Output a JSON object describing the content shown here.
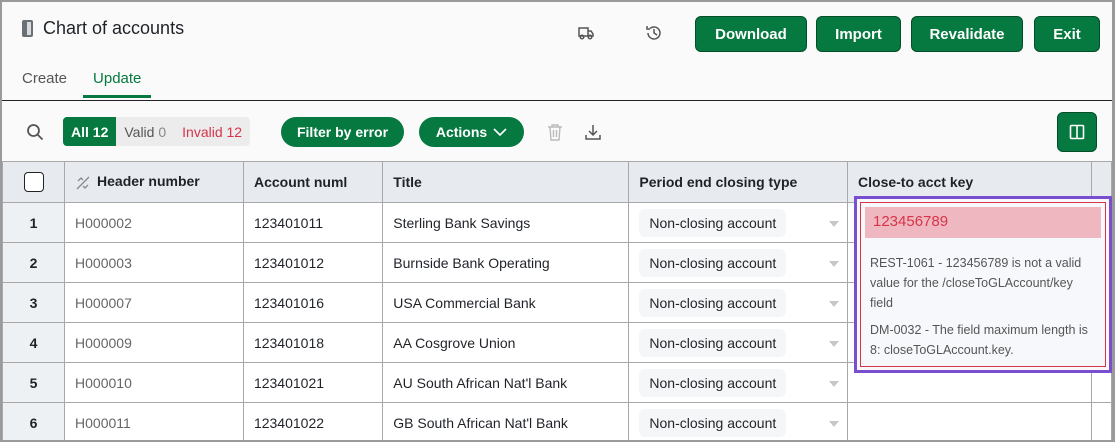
{
  "header": {
    "title": "Chart of accounts",
    "icons": [
      "book-icon",
      "truck-icon",
      "history-icon"
    ],
    "buttons": {
      "download": "Download",
      "import": "Import",
      "revalidate": "Revalidate",
      "exit": "Exit"
    }
  },
  "tabs": [
    {
      "label": "Create",
      "active": false
    },
    {
      "label": "Update",
      "active": true
    }
  ],
  "toolbar": {
    "all_label": "All",
    "all_count": "12",
    "valid_label": "Valid",
    "valid_count": "0",
    "invalid_label": "Invalid",
    "invalid_count": "12",
    "filter_by_error": "Filter by error",
    "actions": "Actions"
  },
  "colors": {
    "brand": "#05793f",
    "error": "#d7344a",
    "highlight": "#7a4fcf"
  },
  "table": {
    "columns": [
      "Header number",
      "Account numl",
      "Title",
      "Period end closing type",
      "Close-to acct key"
    ],
    "rows": [
      {
        "n": "1",
        "header": "H000002",
        "account": "123401011",
        "title": "Sterling Bank Savings",
        "closing": "Non-closing account",
        "key": "123456789"
      },
      {
        "n": "2",
        "header": "H000003",
        "account": "123401012",
        "title": "Burnside Bank Operating",
        "closing": "Non-closing account",
        "key": ""
      },
      {
        "n": "3",
        "header": "H000007",
        "account": "123401016",
        "title": "USA Commercial Bank",
        "closing": "Non-closing account",
        "key": ""
      },
      {
        "n": "4",
        "header": "H000009",
        "account": "123401018",
        "title": "AA Cosgrove Union",
        "closing": "Non-closing account",
        "key": ""
      },
      {
        "n": "5",
        "header": "H000010",
        "account": "123401021",
        "title": "AU South African Nat'l Bank",
        "closing": "Non-closing account",
        "key": ""
      },
      {
        "n": "6",
        "header": "H000011",
        "account": "123401022",
        "title": "GB South African Nat'l Bank",
        "closing": "Non-closing account",
        "key": ""
      }
    ]
  },
  "error": {
    "value": "123456789",
    "messages": [
      "REST-1061 - 123456789 is not a valid value for the /closeToGLAccount/key field",
      "DM-0032 - The field maximum length is 8: closeToGLAccount.key."
    ]
  }
}
